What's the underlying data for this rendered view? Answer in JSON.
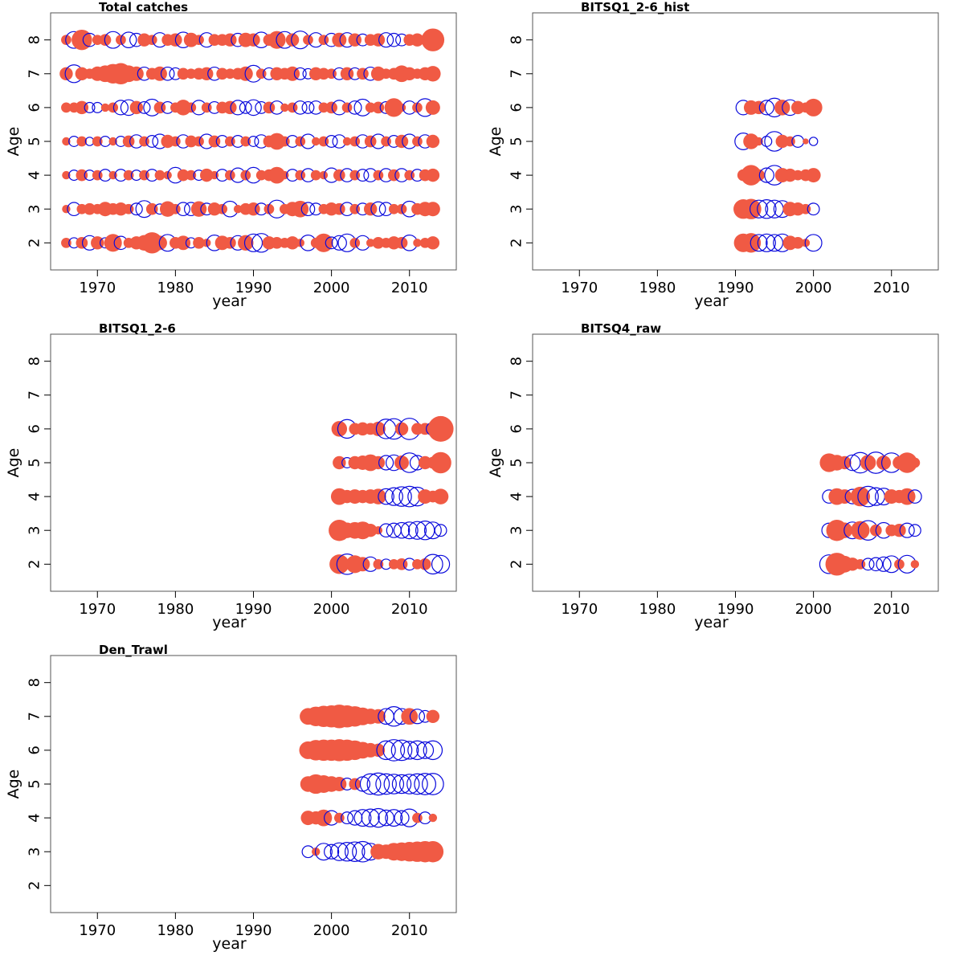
{
  "figure": {
    "colors": {
      "positive": "#f05a44",
      "negative": "#0a0adc",
      "frame": "#555555"
    }
  },
  "chart_data": [
    {
      "type": "scatter",
      "subtype": "bubble",
      "title": "Total catches",
      "xlabel": "year",
      "ylabel": "Age",
      "xlim": [
        1964,
        2016
      ],
      "ylim": [
        1.2,
        8.8
      ],
      "xticks": [
        1970,
        1980,
        1990,
        2000,
        2010
      ],
      "yticks": [
        2,
        3,
        4,
        5,
        6,
        7,
        8
      ],
      "years": [
        1966,
        2013
      ],
      "ages": [
        2,
        3,
        4,
        5,
        6,
        7,
        8
      ],
      "residuals": [
        [
          0.3,
          -0.3,
          0.4,
          -0.6,
          0.5,
          -0.3,
          0.9,
          -0.5,
          0.3,
          0.5,
          0.7,
          1.3,
          0.6,
          -0.8,
          0.4,
          0.6,
          -0.3,
          0.4,
          0.2,
          -0.7,
          0.6,
          0.4,
          -0.6,
          0.7,
          -0.9,
          -1.0,
          0.5,
          0.4,
          0.3,
          0.5,
          0.2,
          -0.7,
          0.3,
          1.0,
          -0.4,
          -0.6,
          -0.9,
          0.3,
          -0.6,
          0.2,
          0.4,
          0.3,
          0.5,
          0.4,
          -0.7,
          0.2,
          0.3,
          0.5
        ],
        [
          0.2,
          -0.5,
          0.3,
          0.4,
          0.3,
          0.6,
          0.4,
          0.5,
          0.3,
          -0.4,
          -0.8,
          0.4,
          -0.3,
          0.7,
          0.3,
          -0.5,
          -0.5,
          0.7,
          -0.4,
          0.5,
          0.3,
          -0.7,
          0.2,
          0.4,
          0.5,
          -0.4,
          0.3,
          -0.9,
          0.3,
          0.6,
          0.8,
          -0.5,
          -0.4,
          0.3,
          0.5,
          0.4,
          -0.5,
          0.3,
          -0.4,
          0.5,
          -0.6,
          -0.5,
          0.3,
          0.3,
          -0.7,
          0.4,
          0.6,
          0.6
        ],
        [
          0.2,
          -0.3,
          0.4,
          -0.3,
          0.3,
          -0.4,
          0.2,
          -0.4,
          0.3,
          -0.3,
          0.3,
          -0.4,
          0.3,
          0.2,
          -0.7,
          0.4,
          0.3,
          -0.3,
          0.5,
          0.2,
          -0.4,
          0.3,
          -0.6,
          0.3,
          -0.7,
          0.3,
          0.4,
          0.8,
          0.2,
          -0.4,
          0.3,
          -0.5,
          0.3,
          0.2,
          -0.6,
          0.4,
          -0.5,
          0.3,
          -0.4,
          -0.5,
          0.3,
          -0.5,
          0.4,
          -0.5,
          0.3,
          -0.4,
          0.4,
          0.5
        ],
        [
          0.2,
          -0.3,
          0.3,
          -0.2,
          0.3,
          -0.3,
          0.2,
          -0.3,
          0.4,
          -0.5,
          0.3,
          -0.4,
          -0.6,
          0.5,
          0.3,
          -0.5,
          0.4,
          0.3,
          -0.6,
          0.4,
          -0.4,
          0.3,
          -0.4,
          0.3,
          -0.3,
          -0.5,
          0.4,
          0.8,
          0.3,
          -0.4,
          0.3,
          -0.6,
          0.2,
          0.3,
          -0.4,
          -0.5,
          0.2,
          0.3,
          -0.5,
          0.4,
          -0.6,
          0.3,
          -0.4,
          0.5,
          -0.6,
          0.3,
          -0.5,
          0.5
        ],
        [
          0.3,
          0.3,
          0.5,
          -0.3,
          -0.3,
          0.2,
          0.3,
          -0.6,
          -0.7,
          0.5,
          -0.4,
          -0.8,
          0.4,
          -0.4,
          0.3,
          0.7,
          0.3,
          -0.6,
          0.3,
          -0.4,
          0.4,
          0.5,
          -0.6,
          -0.4,
          -0.7,
          -0.4,
          0.4,
          -0.5,
          0.2,
          0.3,
          -0.5,
          -0.4,
          -0.5,
          0.3,
          0.4,
          -0.6,
          0.3,
          -0.5,
          -0.8,
          0.3,
          0.4,
          -0.4,
          1.0,
          0.2,
          -0.5,
          0.3,
          -0.9,
          0.6
        ],
        [
          0.5,
          -0.9,
          0.5,
          0.3,
          0.6,
          0.8,
          1.1,
          1.3,
          0.8,
          0.6,
          -0.5,
          0.4,
          0.6,
          -0.5,
          -0.4,
          0.4,
          0.3,
          0.4,
          0.5,
          -0.5,
          0.4,
          0.3,
          0.4,
          0.6,
          -0.8,
          0.3,
          -0.4,
          0.5,
          0.4,
          0.6,
          -0.4,
          -0.3,
          0.5,
          0.4,
          0.3,
          -0.4,
          0.5,
          -0.4,
          0.4,
          -0.5,
          0.6,
          0.3,
          0.4,
          0.8,
          0.5,
          0.3,
          0.5,
          0.7
        ],
        [
          0.3,
          -0.8,
          1.2,
          -0.5,
          0.3,
          0.4,
          -0.8,
          0.3,
          -0.7,
          -0.5,
          0.5,
          0.3,
          -0.6,
          0.4,
          0.5,
          -0.7,
          0.6,
          0.3,
          -0.6,
          0.4,
          0.4,
          0.5,
          -0.5,
          0.6,
          0.5,
          -0.7,
          0.4,
          0.9,
          -0.8,
          0.5,
          -0.9,
          0.3,
          -0.6,
          0.3,
          -0.5,
          0.6,
          -0.6,
          0.5,
          -0.4,
          0.4,
          0.5,
          -0.6,
          -0.5,
          -0.4,
          0.4,
          0.5,
          0.3,
          1.5
        ]
      ]
    },
    {
      "type": "scatter",
      "subtype": "bubble",
      "title": "BITSQ1_2-6_hist",
      "xlabel": "year",
      "ylabel": "Age",
      "xlim": [
        1964,
        2016
      ],
      "ylim": [
        1.2,
        8.8
      ],
      "xticks": [
        1970,
        1980,
        1990,
        2000,
        2010
      ],
      "yticks": [
        2,
        3,
        4,
        5,
        6,
        7,
        8
      ],
      "years": [
        1991,
        2000
      ],
      "ages": [
        2,
        3,
        4,
        5,
        6
      ],
      "residuals": [
        [
          1.0,
          1.1,
          -0.8,
          -0.9,
          -0.8,
          -0.9,
          0.6,
          0.4,
          0.2,
          -0.8
        ],
        [
          1.1,
          1.2,
          -0.9,
          -1.0,
          -0.9,
          -0.8,
          0.6,
          0.5,
          0.3,
          -0.4
        ],
        [
          0.4,
          1.2,
          0.4,
          -0.6,
          -1.1,
          0.6,
          0.5,
          0.3,
          0.4,
          0.6
        ],
        [
          -0.8,
          0.7,
          0.2,
          -0.3,
          -1.1,
          0.5,
          0.3,
          -0.4,
          0.1,
          -0.2
        ],
        [
          -0.6,
          0.6,
          0.5,
          -0.6,
          -1.0,
          0.7,
          -0.7,
          0.5,
          0.3,
          0.9
        ]
      ]
    },
    {
      "type": "scatter",
      "subtype": "bubble",
      "title": "BITSQ1_2-6",
      "xlabel": "year",
      "ylabel": "Age",
      "xlim": [
        1964,
        2016
      ],
      "ylim": [
        1.2,
        8.8
      ],
      "xticks": [
        1970,
        1980,
        1990,
        2000,
        2010
      ],
      "yticks": [
        2,
        3,
        4,
        5,
        6,
        7,
        8
      ],
      "years": [
        2001,
        2014
      ],
      "ages": [
        2,
        3,
        4,
        5,
        6
      ],
      "residuals": [
        [
          1.1,
          -1.2,
          0.9,
          0.6,
          -0.6,
          0.3,
          -0.3,
          0.3,
          0.4,
          -0.4,
          0.3,
          0.4,
          -1.1,
          -0.9
        ],
        [
          1.3,
          0.7,
          0.8,
          0.9,
          0.5,
          0.2,
          -0.5,
          -0.6,
          -0.7,
          -0.8,
          -0.9,
          -1.0,
          -0.8,
          -0.4
        ],
        [
          0.8,
          0.5,
          0.6,
          0.5,
          0.6,
          0.7,
          -0.7,
          -0.9,
          -1.1,
          -1.2,
          -1.0,
          0.6,
          0.4,
          0.7
        ],
        [
          0.5,
          -0.3,
          0.5,
          0.6,
          0.8,
          0.5,
          -0.6,
          -0.7,
          0.6,
          -1.1,
          -0.6,
          0.5,
          0.4,
          1.3
        ],
        [
          0.7,
          -1.0,
          0.4,
          0.5,
          0.4,
          0.6,
          -1.1,
          -1.2,
          0.5,
          -1.3,
          0.4,
          0.4,
          -0.5,
          1.9
        ]
      ]
    },
    {
      "type": "scatter",
      "subtype": "bubble",
      "title": "BITSQ4_raw",
      "xlabel": "year",
      "ylabel": "Age",
      "xlim": [
        1964,
        2016
      ],
      "ylim": [
        1.2,
        8.8
      ],
      "xticks": [
        1970,
        1980,
        1990,
        2000,
        2010
      ],
      "yticks": [
        2,
        3,
        4,
        5,
        6,
        7,
        8
      ],
      "years": [
        2002,
        2013
      ],
      "ages": [
        2,
        3,
        4,
        5
      ],
      "residuals": [
        [
          -1.0,
          1.5,
          0.8,
          0.5,
          0.3,
          -0.4,
          -0.5,
          -0.6,
          -0.8,
          0.3,
          -0.9,
          0.2
        ],
        [
          -0.6,
          1.3,
          0.7,
          -0.8,
          1.0,
          -1.1,
          0.4,
          -0.7,
          0.4,
          0.5,
          -0.6,
          -0.4
        ],
        [
          -0.5,
          0.8,
          0.6,
          -0.6,
          1.1,
          -1.2,
          -0.9,
          -0.8,
          0.6,
          0.5,
          0.8,
          -0.5
        ],
        [
          1.0,
          0.7,
          0.5,
          -0.7,
          -1.2,
          0.7,
          -1.3,
          0.6,
          -1.1,
          0.5,
          1.2,
          0.3
        ]
      ]
    },
    {
      "type": "scatter",
      "subtype": "bubble",
      "title": "Den_Trawl",
      "xlabel": "year",
      "ylabel": "Age",
      "xlim": [
        1964,
        2016
      ],
      "ylim": [
        1.2,
        8.8
      ],
      "xticks": [
        1970,
        1980,
        1990,
        2000,
        2010
      ],
      "yticks": [
        2,
        3,
        4,
        5,
        6,
        7,
        8
      ],
      "years": [
        1997,
        2013
      ],
      "ages": [
        3,
        4,
        5,
        6,
        7
      ],
      "residuals": [
        [
          -0.4,
          0.2,
          -0.8,
          -0.6,
          -0.9,
          -1.0,
          -1.1,
          -1.2,
          -0.8,
          0.7,
          0.6,
          0.9,
          1.0,
          1.1,
          1.2,
          1.3,
          1.3
        ],
        [
          0.6,
          0.5,
          0.8,
          -0.6,
          0.3,
          -0.4,
          -0.6,
          -0.8,
          -0.9,
          -1.0,
          -0.7,
          -0.8,
          -0.6,
          -0.9,
          0.3,
          -0.4,
          0.2
        ],
        [
          0.7,
          1.1,
          0.9,
          0.7,
          0.6,
          -0.4,
          0.4,
          -0.6,
          -1.2,
          -1.4,
          -1.2,
          -1.1,
          -1.0,
          -1.1,
          -1.2,
          -1.3,
          -1.3
        ],
        [
          0.9,
          1.2,
          1.3,
          1.3,
          1.4,
          1.3,
          1.1,
          0.8,
          0.6,
          0.5,
          -1.0,
          -1.3,
          -1.2,
          -0.9,
          -1.0,
          -0.8,
          -1.0
        ],
        [
          0.8,
          1.1,
          1.3,
          1.4,
          1.6,
          1.4,
          1.2,
          0.9,
          0.7,
          0.6,
          -0.7,
          -1.1,
          -0.7,
          0.8,
          -0.6,
          -0.4,
          0.5
        ]
      ]
    }
  ]
}
